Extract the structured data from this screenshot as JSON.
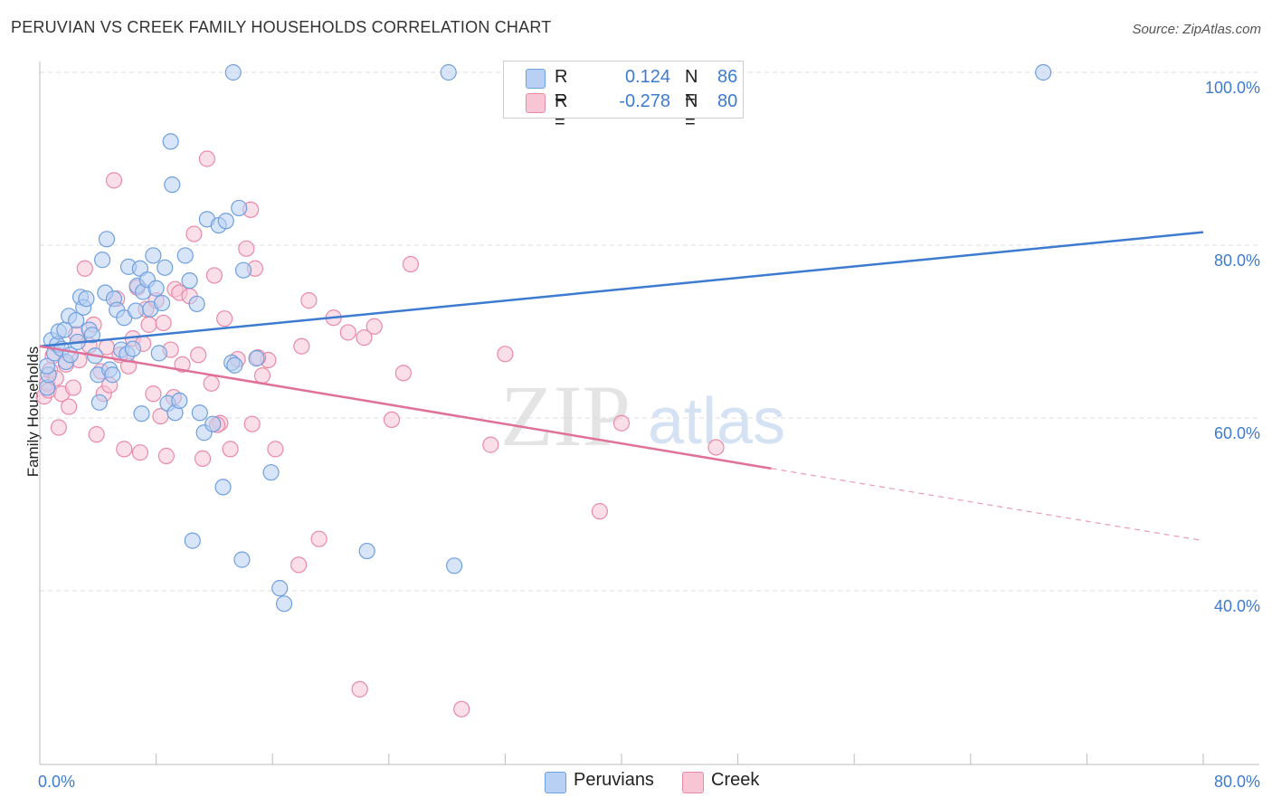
{
  "title": "PERUVIAN VS CREEK FAMILY HOUSEHOLDS CORRELATION CHART",
  "source": "Source: ZipAtlas.com",
  "watermark": {
    "zip": "ZIP",
    "atlas": "atlas"
  },
  "legend": {
    "r_label": "R =",
    "n_label": "N =",
    "rows": [
      {
        "name": "Peruvians",
        "r": "0.124",
        "n": "86",
        "color": "#6fa0e0",
        "fill": "#b8d0f3"
      },
      {
        "name": "Creek",
        "r": "-0.278",
        "n": "80",
        "color": "#e98aa8",
        "fill": "#f8c5d5"
      }
    ]
  },
  "chart_data": {
    "type": "scatter",
    "title": "PERUVIAN VS CREEK FAMILY HOUSEHOLDS CORRELATION CHART",
    "xlabel": "",
    "ylabel": "Family Households",
    "xlim": [
      0,
      80
    ],
    "ylim": [
      20,
      102
    ],
    "x_tick_labels": [
      "0.0%",
      "80.0%"
    ],
    "y_ticks": [
      40,
      60,
      80,
      100
    ],
    "y_tick_labels": [
      "40.0%",
      "60.0%",
      "80.0%",
      "100.0%"
    ],
    "grid": true,
    "series": [
      {
        "name": "Peruvians",
        "color": "#3d7bd1",
        "trend": {
          "x": [
            0,
            80
          ],
          "y": [
            68.3,
            81.5
          ],
          "dashed_from": null
        },
        "points": [
          [
            0.5,
            63.5
          ],
          [
            0.6,
            65.0
          ],
          [
            0.5,
            66.0
          ],
          [
            0.8,
            69.0
          ],
          [
            1.0,
            67.5
          ],
          [
            1.2,
            68.5
          ],
          [
            1.3,
            70.0
          ],
          [
            1.5,
            68.0
          ],
          [
            1.7,
            70.2
          ],
          [
            1.8,
            66.5
          ],
          [
            2.0,
            71.8
          ],
          [
            2.1,
            67.3
          ],
          [
            2.5,
            71.3
          ],
          [
            2.6,
            68.8
          ],
          [
            2.8,
            74.0
          ],
          [
            3.0,
            72.8
          ],
          [
            3.2,
            73.8
          ],
          [
            3.4,
            70.2
          ],
          [
            3.6,
            69.6
          ],
          [
            3.8,
            67.2
          ],
          [
            4.0,
            65.0
          ],
          [
            4.1,
            61.8
          ],
          [
            4.3,
            78.3
          ],
          [
            4.5,
            74.5
          ],
          [
            4.6,
            80.7
          ],
          [
            4.8,
            65.6
          ],
          [
            5.0,
            65.0
          ],
          [
            5.1,
            73.8
          ],
          [
            5.3,
            72.5
          ],
          [
            5.6,
            67.9
          ],
          [
            5.8,
            71.6
          ],
          [
            6.0,
            67.4
          ],
          [
            6.1,
            77.5
          ],
          [
            6.4,
            68.0
          ],
          [
            6.6,
            72.4
          ],
          [
            6.7,
            75.3
          ],
          [
            6.9,
            77.3
          ],
          [
            7.0,
            60.5
          ],
          [
            7.1,
            74.6
          ],
          [
            7.4,
            76.0
          ],
          [
            7.6,
            72.6
          ],
          [
            7.8,
            78.8
          ],
          [
            8.0,
            75.0
          ],
          [
            8.2,
            67.5
          ],
          [
            8.4,
            73.3
          ],
          [
            8.6,
            77.4
          ],
          [
            8.8,
            61.7
          ],
          [
            9.0,
            92.0
          ],
          [
            9.1,
            87.0
          ],
          [
            9.3,
            60.6
          ],
          [
            9.6,
            62.0
          ],
          [
            10.0,
            78.8
          ],
          [
            10.3,
            75.9
          ],
          [
            10.5,
            45.8
          ],
          [
            10.8,
            73.2
          ],
          [
            11.0,
            60.6
          ],
          [
            11.3,
            58.3
          ],
          [
            11.5,
            83.0
          ],
          [
            11.9,
            59.3
          ],
          [
            12.3,
            82.3
          ],
          [
            12.6,
            52.0
          ],
          [
            12.8,
            82.8
          ],
          [
            13.2,
            66.4
          ],
          [
            13.4,
            66.1
          ],
          [
            13.7,
            84.3
          ],
          [
            13.9,
            43.6
          ],
          [
            14.0,
            77.1
          ],
          [
            14.9,
            66.9
          ],
          [
            15.9,
            53.7
          ],
          [
            16.5,
            40.3
          ],
          [
            16.8,
            38.5
          ],
          [
            22.5,
            44.6
          ],
          [
            28.5,
            42.9
          ],
          [
            13.3,
            100.0
          ],
          [
            28.1,
            100.0
          ],
          [
            69.0,
            100.0
          ]
        ]
      },
      {
        "name": "Creek",
        "color": "#e07098",
        "trend": {
          "x": [
            0,
            80
          ],
          "y": [
            68.3,
            45.8
          ],
          "solid_until_x": 50.3
        },
        "points": [
          [
            0.3,
            62.5
          ],
          [
            0.5,
            64.0
          ],
          [
            0.6,
            63.2
          ],
          [
            0.7,
            65.5
          ],
          [
            0.9,
            67.2
          ],
          [
            1.1,
            64.6
          ],
          [
            1.3,
            58.9
          ],
          [
            1.5,
            62.8
          ],
          [
            1.8,
            66.2
          ],
          [
            2.0,
            61.3
          ],
          [
            2.3,
            63.5
          ],
          [
            2.5,
            69.7
          ],
          [
            2.7,
            66.7
          ],
          [
            3.1,
            77.3
          ],
          [
            3.4,
            68.4
          ],
          [
            3.7,
            70.8
          ],
          [
            3.9,
            58.1
          ],
          [
            4.2,
            65.4
          ],
          [
            4.4,
            62.8
          ],
          [
            4.6,
            68.2
          ],
          [
            4.8,
            63.8
          ],
          [
            5.1,
            87.5
          ],
          [
            5.3,
            73.8
          ],
          [
            5.5,
            67.3
          ],
          [
            5.8,
            56.4
          ],
          [
            6.1,
            66.0
          ],
          [
            6.4,
            69.2
          ],
          [
            6.7,
            75.1
          ],
          [
            6.9,
            56.0
          ],
          [
            7.1,
            68.6
          ],
          [
            7.3,
            72.6
          ],
          [
            7.5,
            70.8
          ],
          [
            7.8,
            62.8
          ],
          [
            8.0,
            73.6
          ],
          [
            8.3,
            60.2
          ],
          [
            8.5,
            71.0
          ],
          [
            8.7,
            55.6
          ],
          [
            9.0,
            67.9
          ],
          [
            9.3,
            74.9
          ],
          [
            9.6,
            74.5
          ],
          [
            9.8,
            66.2
          ],
          [
            10.3,
            74.1
          ],
          [
            10.6,
            81.3
          ],
          [
            10.9,
            67.3
          ],
          [
            11.2,
            55.3
          ],
          [
            11.5,
            90.0
          ],
          [
            11.8,
            64.0
          ],
          [
            12.0,
            76.5
          ],
          [
            12.4,
            59.4
          ],
          [
            12.7,
            71.5
          ],
          [
            13.1,
            56.4
          ],
          [
            13.6,
            66.8
          ],
          [
            14.2,
            79.6
          ],
          [
            14.5,
            84.1
          ],
          [
            14.8,
            77.3
          ],
          [
            15.3,
            64.9
          ],
          [
            15.7,
            66.7
          ],
          [
            16.2,
            56.4
          ],
          [
            18.0,
            68.3
          ],
          [
            18.5,
            73.6
          ],
          [
            19.2,
            46.0
          ],
          [
            20.2,
            71.6
          ],
          [
            21.2,
            69.9
          ],
          [
            22.0,
            28.6
          ],
          [
            22.3,
            69.3
          ],
          [
            23.0,
            70.6
          ],
          [
            24.2,
            59.8
          ],
          [
            25.0,
            65.2
          ],
          [
            25.5,
            77.8
          ],
          [
            29.0,
            26.3
          ],
          [
            31.0,
            56.9
          ],
          [
            32.0,
            67.4
          ],
          [
            38.5,
            49.2
          ],
          [
            40.0,
            59.4
          ],
          [
            46.5,
            56.6
          ],
          [
            15.0,
            67.0
          ],
          [
            14.6,
            59.3
          ],
          [
            17.8,
            43.0
          ],
          [
            12.2,
            59.2
          ],
          [
            9.2,
            62.4
          ]
        ]
      }
    ]
  }
}
